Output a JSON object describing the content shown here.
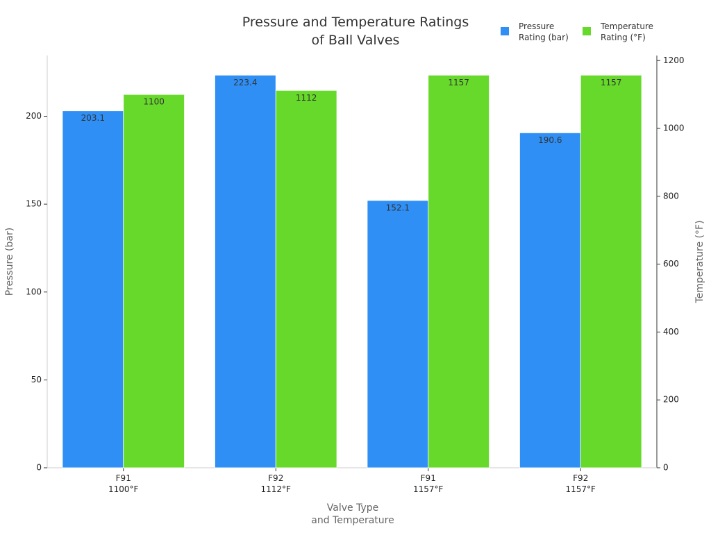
{
  "chart_data": {
    "type": "bar",
    "title": "Pressure and Temperature Ratings\nof Ball Valves",
    "xlabel": "Valve Type\nand Temperature",
    "ylabel": "Pressure (bar)",
    "y2label": "Temperature (°F)",
    "categories": [
      "F91\n1100°F",
      "F92\n1112°F",
      "F91\n1157°F",
      "F92\n1157°F"
    ],
    "series": [
      {
        "name": "Pressure\nRating (bar)",
        "color": "#2f8ff5",
        "values": [
          203.1,
          223.4,
          152.1,
          190.6
        ]
      },
      {
        "name": "Temperature\nRating (°F)",
        "color": "#66d92a",
        "values": [
          1100,
          1112,
          1157,
          1157
        ],
        "axis": "y2"
      }
    ],
    "ylim": [
      0,
      234.57
    ],
    "yticks": [
      0,
      50,
      100,
      150,
      200
    ],
    "y2lim": [
      0,
      1214.85
    ],
    "y2ticks": [
      0,
      200,
      400,
      600,
      800,
      1000,
      1200
    ],
    "legend": "upper right"
  }
}
